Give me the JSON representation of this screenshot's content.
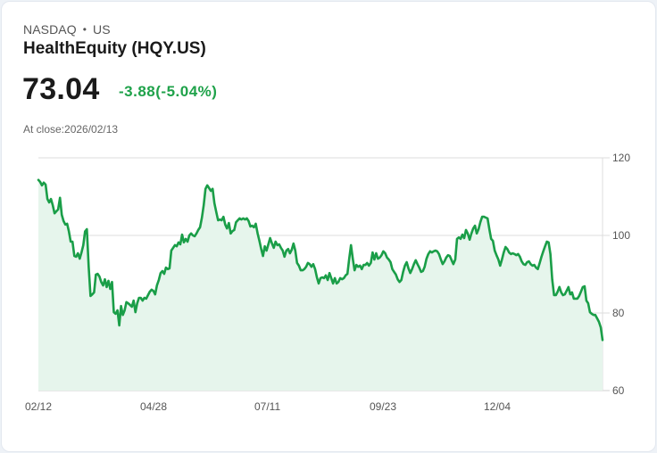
{
  "header": {
    "exchange": "NASDAQ",
    "separator": "•",
    "country": "US",
    "title": "HealthEquity (HQY.US)",
    "price": "73.04",
    "change": "-3.88(-5.04%)",
    "close_label": "At close:2026/02/13"
  },
  "colors": {
    "line": "#1a9e48",
    "fill": "#e6f5ec",
    "change_negative": "#1fa24a",
    "grid": "#dcdcdc"
  },
  "chart_data": {
    "type": "area",
    "title": "HealthEquity (HQY.US)",
    "xlabel": "",
    "ylabel": "",
    "ylim": [
      60,
      120
    ],
    "y_ticks": [
      60,
      80,
      100,
      120
    ],
    "x_ticks": [
      "02/12",
      "04/28",
      "07/11",
      "09/23",
      "12/04"
    ],
    "grid": true,
    "legend": null,
    "x_start": "02/12",
    "x_end": "02/13",
    "last_value": 73.04,
    "values": [
      114.3,
      113.8,
      112.9,
      113.6,
      113.1,
      109.4,
      108.5,
      109.4,
      107.8,
      105.7,
      106.2,
      106.7,
      109.7,
      105.3,
      103.7,
      102.8,
      103.0,
      101.0,
      98.4,
      98.4,
      94.7,
      94.5,
      95.4,
      94.0,
      95.6,
      97.5,
      101.0,
      101.6,
      91.7,
      84.4,
      84.8,
      85.3,
      89.9,
      90.1,
      89.4,
      88.0,
      87.1,
      88.7,
      86.7,
      88.3,
      86.2,
      88.0,
      80.2,
      79.8,
      80.7,
      76.8,
      81.8,
      79.5,
      80.7,
      82.8,
      82.5,
      82.1,
      81.6,
      83.2,
      80.2,
      82.5,
      83.9,
      83.9,
      83.2,
      83.9,
      83.7,
      84.6,
      85.5,
      86.0,
      85.7,
      84.8,
      87.1,
      88.5,
      90.3,
      90.8,
      90.1,
      91.7,
      91.3,
      91.5,
      96.1,
      96.8,
      97.5,
      97.2,
      98.2,
      97.7,
      100.2,
      98.2,
      99.1,
      98.4,
      100.0,
      100.5,
      100.0,
      99.8,
      100.5,
      101.4,
      102.1,
      104.6,
      107.8,
      112.0,
      112.9,
      112.2,
      111.5,
      112.0,
      108.3,
      106.0,
      103.9,
      104.1,
      103.9,
      104.8,
      102.8,
      101.8,
      103.2,
      100.5,
      101.1,
      101.4,
      103.4,
      103.9,
      104.4,
      104.1,
      104.4,
      104.1,
      104.4,
      103.7,
      102.3,
      102.5,
      102.1,
      103.0,
      100.5,
      98.6,
      96.5,
      94.7,
      97.2,
      96.1,
      97.7,
      99.3,
      97.9,
      96.8,
      98.4,
      97.5,
      97.7,
      96.8,
      96.1,
      94.5,
      96.1,
      96.5,
      95.4,
      96.3,
      97.9,
      96.1,
      92.9,
      92.2,
      91.0,
      91.0,
      91.3,
      91.9,
      92.9,
      92.6,
      91.9,
      92.6,
      91.3,
      89.2,
      87.6,
      89.0,
      89.2,
      89.0,
      89.7,
      88.5,
      90.3,
      89.0,
      87.6,
      89.0,
      87.6,
      88.0,
      89.0,
      88.7,
      89.0,
      89.7,
      90.1,
      94.0,
      97.5,
      94.0,
      91.0,
      92.4,
      91.9,
      92.2,
      91.3,
      92.4,
      92.4,
      92.9,
      92.2,
      92.9,
      95.6,
      93.8,
      95.4,
      94.0,
      94.3,
      94.9,
      95.9,
      95.4,
      94.3,
      93.8,
      93.1,
      91.3,
      90.6,
      89.9,
      88.7,
      88.0,
      88.5,
      90.6,
      92.2,
      93.1,
      91.5,
      90.3,
      91.3,
      92.6,
      93.6,
      92.6,
      91.7,
      90.6,
      90.8,
      91.9,
      94.0,
      95.2,
      95.9,
      95.6,
      95.9,
      96.1,
      95.9,
      95.2,
      93.8,
      92.6,
      93.3,
      94.3,
      94.9,
      94.7,
      93.6,
      92.6,
      93.8,
      99.1,
      99.5,
      99.1,
      100.2,
      99.3,
      101.4,
      100.5,
      98.9,
      100.5,
      101.8,
      102.5,
      100.5,
      101.6,
      103.4,
      104.8,
      104.8,
      104.6,
      104.4,
      101.6,
      99.1,
      98.6,
      96.1,
      94.9,
      93.8,
      92.2,
      93.8,
      95.6,
      97.0,
      96.5,
      95.6,
      95.2,
      95.4,
      95.2,
      94.9,
      95.2,
      94.5,
      93.3,
      92.6,
      92.4,
      93.1,
      93.3,
      92.6,
      92.2,
      92.4,
      91.7,
      91.3,
      92.9,
      94.5,
      95.9,
      97.2,
      98.4,
      98.2,
      95.2,
      88.7,
      84.6,
      84.6,
      85.5,
      86.7,
      85.3,
      84.6,
      84.8,
      85.7,
      86.7,
      84.8,
      85.3,
      83.7,
      83.7,
      83.7,
      84.4,
      85.5,
      86.7,
      86.9,
      83.2,
      82.5,
      80.2,
      79.8,
      79.5,
      79.5,
      78.6,
      77.7,
      76.3,
      73.04
    ]
  }
}
